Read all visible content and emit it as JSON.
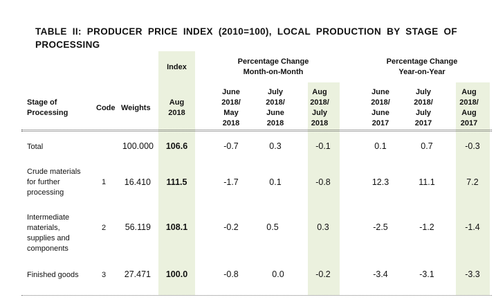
{
  "title": "TABLE II: PRODUCER PRICE INDEX (2010=100), LOCAL PRODUCTION BY STAGE OF PROCESSING",
  "colors": {
    "highlight": "#ebf1de"
  },
  "header": {
    "index_label": "Index",
    "mom_group": [
      "Percentage Change",
      "Month-on-Month"
    ],
    "yoy_group": [
      "Percentage Change",
      "Year-on-Year"
    ],
    "stage": [
      "Stage of",
      "Processing"
    ],
    "code": "Code",
    "weights": "Weights",
    "index_period": [
      "Aug",
      "2018"
    ],
    "mom_cols": [
      [
        "June",
        "2018/",
        "May",
        "2018"
      ],
      [
        "July",
        "2018/",
        "June",
        "2018"
      ],
      [
        "Aug",
        "2018/",
        "July",
        "2018"
      ]
    ],
    "yoy_cols": [
      [
        "June",
        "2018/",
        "June",
        "2017"
      ],
      [
        "July",
        "2018/",
        "July",
        "2017"
      ],
      [
        "Aug",
        "2018/",
        "Aug",
        "2017"
      ]
    ]
  },
  "rows": [
    {
      "stage": [
        "Total"
      ],
      "code": "",
      "weight": "100.000",
      "index": "106.6",
      "mom": [
        "-0.7",
        "0.3",
        "-0.1"
      ],
      "yoy": [
        "0.1",
        "0.7",
        "-0.3"
      ]
    },
    {
      "stage": [
        "Crude materials",
        "for further",
        "processing"
      ],
      "code": "1",
      "weight": "16.410",
      "index": "111.5",
      "mom": [
        "-1.7",
        "0.1",
        "-0.8"
      ],
      "yoy": [
        "12.3",
        "11.1",
        "7.2"
      ]
    },
    {
      "stage": [
        "Intermediate",
        "materials,",
        "supplies and",
        "components"
      ],
      "code": "2",
      "weight": "56.119",
      "index": "108.1",
      "mom": [
        "-0.2",
        "0.5",
        "0.3"
      ],
      "yoy": [
        "-2.5",
        "-1.2",
        "-1.4"
      ]
    },
    {
      "stage": [
        "Finished goods"
      ],
      "code": "3",
      "weight": "27.471",
      "index": "100.0",
      "mom": [
        "-0.8",
        "0.0",
        "-0.2"
      ],
      "yoy": [
        "-3.4",
        "-3.1",
        "-3.3"
      ]
    }
  ]
}
